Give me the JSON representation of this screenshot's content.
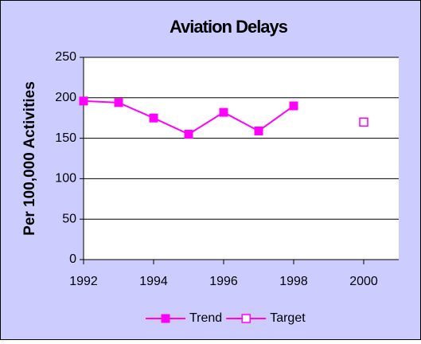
{
  "chart_data": {
    "type": "line",
    "title": "Aviation Delays",
    "y_label": "Per 100,000 Activities",
    "series": [
      {
        "name": "Trend",
        "color": "#ff00ff",
        "marker": "filled-square",
        "x": [
          1992,
          1993,
          1994,
          1995,
          1996,
          1997,
          1998
        ],
        "values": [
          196,
          194,
          175,
          155,
          182,
          159,
          190
        ]
      },
      {
        "name": "Target",
        "color": "#ff00ff",
        "marker": "hollow-square",
        "x": [
          2000
        ],
        "values": [
          170
        ]
      }
    ],
    "xlim": [
      1992,
      2001
    ],
    "xticks": [
      1992,
      1994,
      1996,
      1998,
      2000
    ],
    "ylim": [
      0,
      250
    ],
    "yticks": [
      0,
      50,
      100,
      150,
      200,
      250
    ],
    "grid": true,
    "legend": "bottom"
  }
}
